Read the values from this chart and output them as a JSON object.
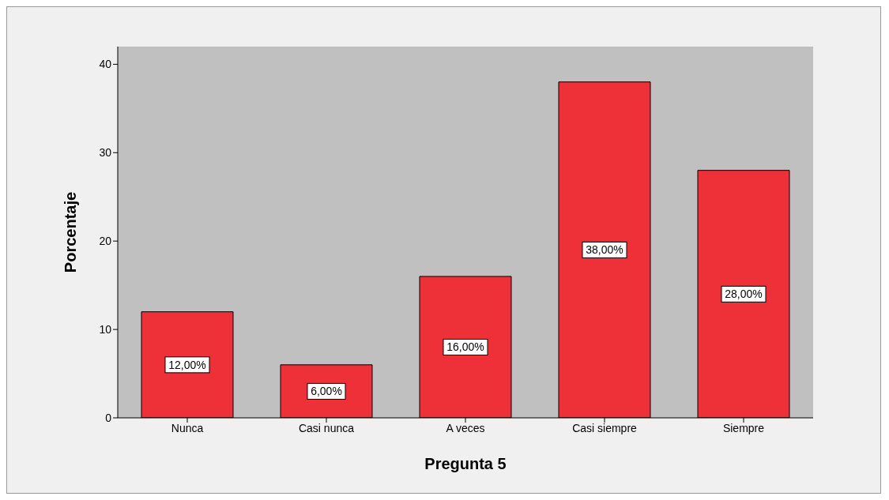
{
  "chart_data": {
    "type": "bar",
    "xlabel": "Pregunta 5",
    "ylabel": "Porcentaje",
    "categories": [
      "Nunca",
      "Casi nunca",
      "A veces",
      "Casi siempre",
      "Siempre"
    ],
    "values": [
      12,
      6,
      16,
      38,
      28
    ],
    "value_labels": [
      "12,00%",
      "6,00%",
      "16,00%",
      "38,00%",
      "28,00%"
    ],
    "color": "#ee3039",
    "ylim": [
      0,
      42
    ],
    "yticks": [
      0,
      10,
      20,
      30,
      40
    ],
    "grid": false
  }
}
